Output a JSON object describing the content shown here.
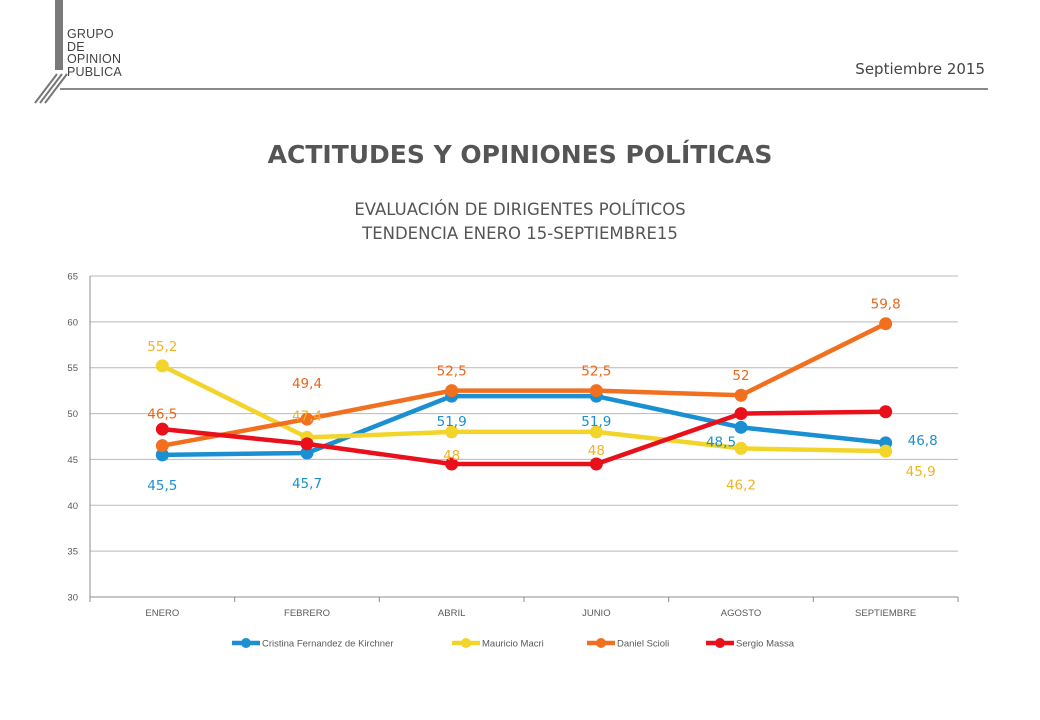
{
  "header": {
    "brand_lines": [
      "GRUPO",
      "DE",
      "OPINION",
      "PUBLICA"
    ],
    "date": "Septiembre 2015"
  },
  "title": "ACTITUDES Y OPINIONES POLÍTICAS",
  "subtitle_lines": [
    "EVALUACIÓN DE DIRIGENTES POLÍTICOS",
    "TENDENCIA ENERO 15-SEPTIEMBRE15"
  ],
  "colors": {
    "Cristina Fernandez de Kirchner": "#1a8fd1",
    "Mauricio Macri": "#f2d42b",
    "Daniel Scioli": "#f07020",
    "Sergio Massa": "#e8101a"
  },
  "chart_data": {
    "type": "line",
    "categories": [
      "ENERO",
      "FEBRERO",
      "ABRIL",
      "JUNIO",
      "AGOSTO",
      "SEPTIEMBRE"
    ],
    "ylim": [
      30,
      65
    ],
    "yticks": [
      30,
      35,
      40,
      45,
      50,
      55,
      60,
      65
    ],
    "grid": true,
    "legend": "bottom",
    "series": [
      {
        "name": "Cristina Fernandez de Kirchner",
        "values": [
          45.5,
          45.7,
          51.9,
          51.9,
          48.5,
          46.8
        ],
        "labels": [
          "45,5",
          "45,7",
          "51,9",
          "51,9",
          "48,5",
          "46,8"
        ]
      },
      {
        "name": "Mauricio Macri",
        "values": [
          55.2,
          47.4,
          48,
          48,
          46.2,
          45.9
        ],
        "labels": [
          "55,2",
          "47,4",
          "48",
          "48",
          "46,2",
          "45,9"
        ]
      },
      {
        "name": "Daniel Scioli",
        "values": [
          46.5,
          49.4,
          52.5,
          52.5,
          52,
          59.8
        ],
        "labels": [
          "46,5",
          "49,4",
          "52,5",
          "52,5",
          "52",
          "59,8"
        ]
      },
      {
        "name": "Sergio Massa",
        "values": [
          48.3,
          46.7,
          44.5,
          44.5,
          50.0,
          50.2
        ],
        "labels": []
      }
    ]
  }
}
